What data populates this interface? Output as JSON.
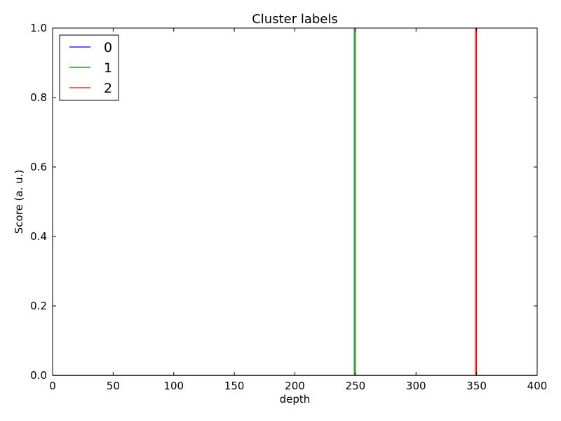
{
  "chart_data": {
    "type": "line",
    "title": "Cluster labels",
    "xlabel": "depth",
    "ylabel": "Score (a. u.)",
    "xlim": [
      0,
      400
    ],
    "ylim": [
      0,
      1
    ],
    "xticks": [
      0,
      50,
      100,
      150,
      200,
      250,
      300,
      350,
      400
    ],
    "yticks": [
      0.0,
      0.2,
      0.4,
      0.6,
      0.8,
      1.0
    ],
    "xtick_labels": [
      "0",
      "50",
      "100",
      "150",
      "200",
      "250",
      "300",
      "350",
      "400"
    ],
    "ytick_labels": [
      "0.0",
      "0.2",
      "0.4",
      "0.6",
      "0.8",
      "1.0"
    ],
    "grid": false,
    "legend_position": "top-left",
    "series": [
      {
        "name": "0",
        "color": "#0000ff",
        "x": [
          0,
          249,
          249,
          250,
          250,
          349,
          349,
          350,
          350,
          400
        ],
        "y": [
          0,
          0,
          0,
          0,
          0,
          0,
          0,
          0,
          0,
          0
        ]
      },
      {
        "name": "1",
        "color": "#008000",
        "x": [
          0,
          249,
          249,
          250,
          250,
          400
        ],
        "y": [
          0,
          0,
          1,
          1,
          0,
          0
        ]
      },
      {
        "name": "2",
        "color": "#ff0000",
        "x": [
          0,
          349,
          349,
          350,
          350,
          400
        ],
        "y": [
          0,
          0,
          1,
          1,
          0,
          0
        ]
      }
    ]
  }
}
